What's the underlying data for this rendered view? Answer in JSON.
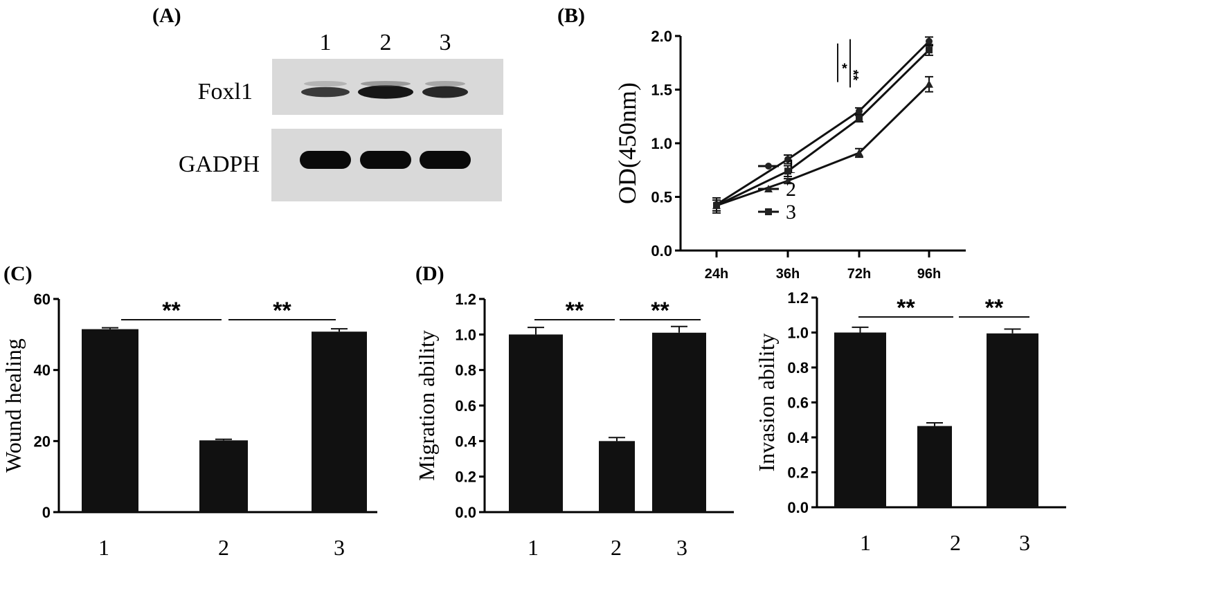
{
  "panels": {
    "a": "(A)",
    "b": "(B)",
    "c": "(C)",
    "d": "(D)"
  },
  "blot": {
    "lanes": [
      "1",
      "2",
      "3"
    ],
    "rows": [
      {
        "label": "Foxl1",
        "intensity": [
          0.55,
          0.95,
          0.75
        ]
      },
      {
        "label": "GADPH",
        "intensity": [
          1.0,
          1.0,
          1.0
        ]
      }
    ],
    "background_color": "#d9d9d9"
  },
  "chart_data": [
    {
      "id": "b",
      "type": "line",
      "title": "",
      "xlabel": "",
      "ylabel": "OD(450nm)",
      "categories": [
        "24h",
        "36h",
        "72h",
        "96h"
      ],
      "ylim": [
        0,
        2.0
      ],
      "yticks": [
        "0.0",
        "0.5",
        "1.0",
        "1.5",
        "2.0"
      ],
      "series": [
        {
          "name": "1",
          "marker": "circle",
          "values": [
            0.43,
            0.85,
            1.3,
            1.95
          ],
          "errors": [
            0.06,
            0.04,
            0.03,
            0.04
          ]
        },
        {
          "name": "2",
          "marker": "triangle",
          "values": [
            0.42,
            0.65,
            0.91,
            1.55
          ],
          "errors": [
            0.05,
            0.02,
            0.04,
            0.07
          ]
        },
        {
          "name": "3",
          "marker": "square",
          "values": [
            0.42,
            0.74,
            1.23,
            1.87
          ],
          "errors": [
            0.07,
            0.05,
            0.03,
            0.05
          ]
        }
      ],
      "significance": [
        "*",
        "**"
      ],
      "legend": "bottom-right"
    },
    {
      "id": "c",
      "type": "bar",
      "ylabel": "Wound healing",
      "categories": [
        "1",
        "2",
        "3"
      ],
      "values": [
        51.5,
        20.2,
        50.8
      ],
      "errors": [
        0.4,
        0.3,
        0.8
      ],
      "ylim": [
        0,
        60
      ],
      "yticks": [
        "0",
        "20",
        "40",
        "60"
      ],
      "significance": [
        "**",
        "**"
      ]
    },
    {
      "id": "d1",
      "type": "bar",
      "ylabel": "Migration ability",
      "categories": [
        "1",
        "2",
        "3"
      ],
      "values": [
        1.0,
        0.4,
        1.01
      ],
      "errors": [
        0.04,
        0.02,
        0.035
      ],
      "ylim": [
        0,
        1.2
      ],
      "yticks": [
        "0.0",
        "0.2",
        "0.4",
        "0.6",
        "0.8",
        "1.0",
        "1.2"
      ],
      "significance": [
        "**",
        "**"
      ]
    },
    {
      "id": "d2",
      "type": "bar",
      "ylabel": "Invasion ability",
      "categories": [
        "1",
        "2",
        "3"
      ],
      "values": [
        1.0,
        0.465,
        0.995
      ],
      "errors": [
        0.03,
        0.018,
        0.025
      ],
      "ylim": [
        0,
        1.2
      ],
      "yticks": [
        "0.0",
        "0.2",
        "0.4",
        "0.6",
        "0.8",
        "1.0",
        "1.2"
      ],
      "significance": [
        "**",
        "**"
      ]
    }
  ]
}
